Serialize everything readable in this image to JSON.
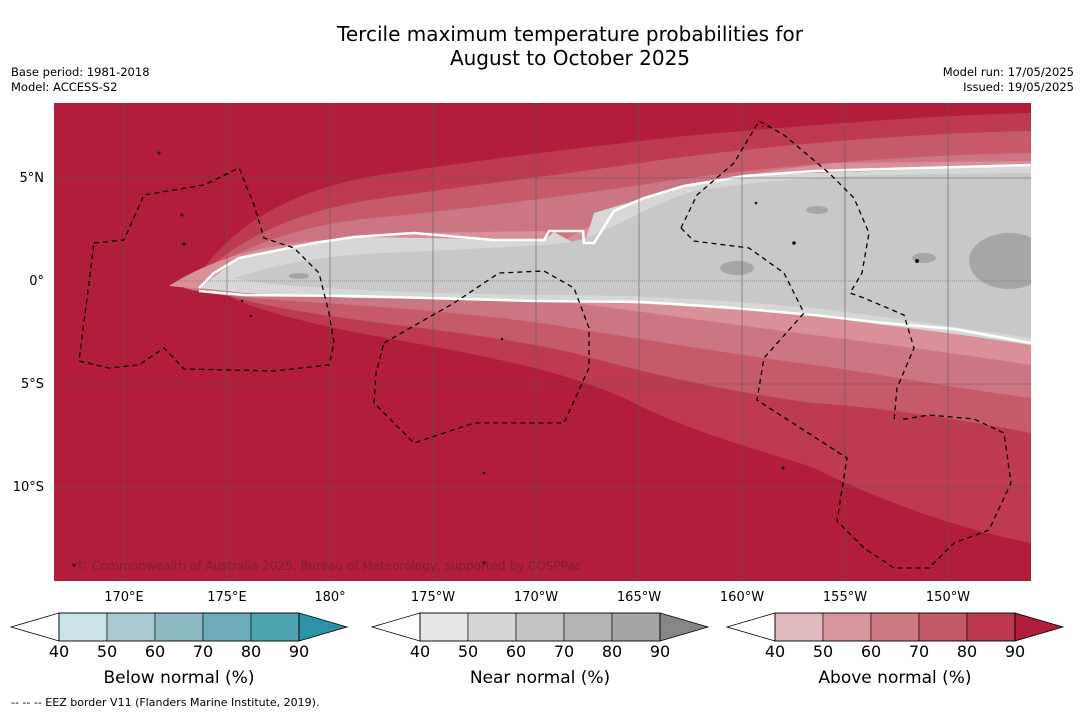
{
  "title": {
    "line1": "Tercile maximum temperature probabilities for",
    "line2": "August to October 2025"
  },
  "meta_left": {
    "base_period": "Base period: 1981-2018",
    "model": "Model: ACCESS-S2"
  },
  "meta_right": {
    "model_run": "Model run: 17/05/2025",
    "issued": "Issued: 19/05/2025"
  },
  "map": {
    "copyright": "© Commonwealth of Australia 2025, Bureau of Meteorology, supported by COSPPac",
    "lat_labels": [
      "5°N",
      "0°",
      "5°S",
      "10°S"
    ],
    "lon_labels": [
      "170°E",
      "175°E",
      "180°",
      "175°W",
      "170°W",
      "165°W",
      "160°W",
      "155°W",
      "150°W"
    ],
    "colors": {
      "above_90": "#b11d3a",
      "above_80": "#bd3a4f",
      "above_70": "#c75a68",
      "above_60": "#cc7683",
      "above_50": "#d99099",
      "near_40": "#d7d7d7",
      "near_50": "#c8c8c8",
      "near_60": "#a6a6a6"
    }
  },
  "colorbars": {
    "below": {
      "title": "Below normal (%)",
      "ticks": [
        "40",
        "50",
        "60",
        "70",
        "80",
        "90"
      ],
      "colors": [
        "#c9e2e8",
        "#a8c9d0",
        "#8cb9c4",
        "#6cadbc",
        "#4ea3b3",
        "#2c92a8"
      ]
    },
    "near": {
      "title": "Near normal (%)",
      "ticks": [
        "40",
        "50",
        "60",
        "70",
        "80",
        "90"
      ],
      "colors": [
        "#e6e6e6",
        "#d5d5d5",
        "#c3c3c3",
        "#b4b4b4",
        "#a5a5a5",
        "#868686"
      ]
    },
    "above": {
      "title": "Above normal (%)",
      "ticks": [
        "40",
        "50",
        "60",
        "70",
        "80",
        "90"
      ],
      "colors": [
        "#e0b8be",
        "#d8959c",
        "#cd7a83",
        "#c35866",
        "#bb3a4d",
        "#b11d3a"
      ]
    }
  },
  "footnote": "--  --  -- EEZ border V11 (Flanders Marine Institute, 2019)."
}
